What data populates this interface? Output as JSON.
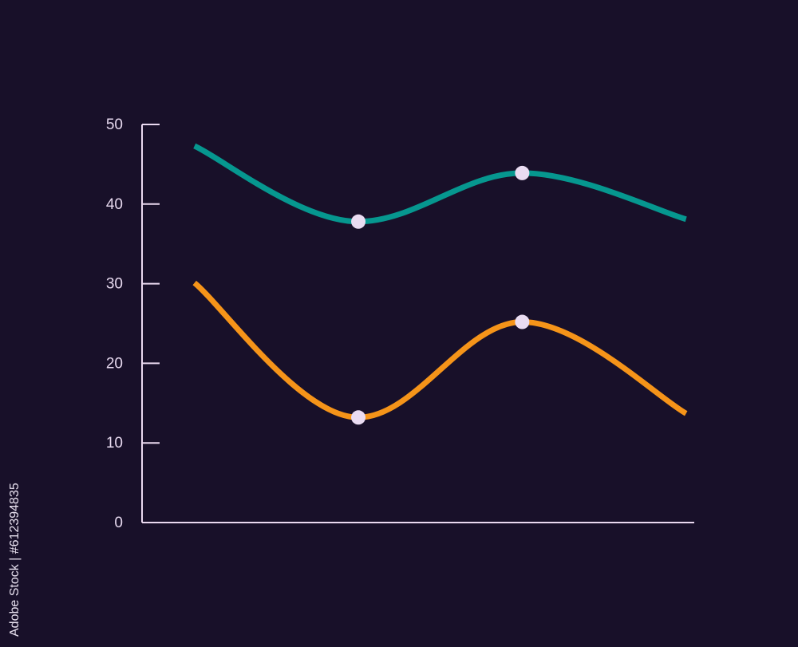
{
  "colors": {
    "background": "#181029",
    "axis": "#ead9f0",
    "tick_text": "#e6d8ee",
    "marker": "#eadcf2"
  },
  "watermark": "Adobe Stock | #612394835",
  "chart_data": {
    "type": "line",
    "title": "",
    "xlabel": "",
    "ylabel": "",
    "x": [
      0,
      1,
      2,
      3
    ],
    "xlim": [
      -0.32,
      3.05
    ],
    "ylim": [
      0,
      50
    ],
    "yticks": [
      0,
      10,
      20,
      30,
      40,
      50
    ],
    "grid": false,
    "legend": "none",
    "series": [
      {
        "color": "#06978f",
        "values": [
          47.3,
          37.8,
          43.9,
          38.1
        ],
        "markers": [
          1,
          2
        ]
      },
      {
        "color": "#f59419",
        "values": [
          30.1,
          13.2,
          25.2,
          13.7
        ],
        "markers": [
          1,
          2
        ]
      }
    ]
  }
}
